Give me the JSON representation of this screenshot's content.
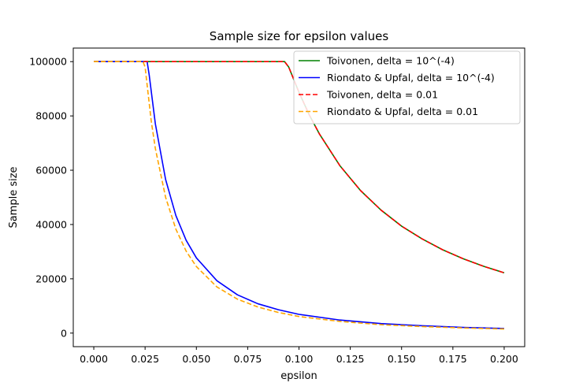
{
  "chart_data": {
    "type": "line",
    "title": "Sample size for epsilon values",
    "xlabel": "epsilon",
    "ylabel": "Sample size",
    "xlim": [
      -0.01,
      0.21
    ],
    "ylim": [
      -5000,
      105000
    ],
    "xticks": [
      0.0,
      0.025,
      0.05,
      0.075,
      0.1,
      0.125,
      0.15,
      0.175,
      0.2
    ],
    "xtick_labels": [
      "0.000",
      "0.025",
      "0.050",
      "0.075",
      "0.100",
      "0.125",
      "0.150",
      "0.175",
      "0.200"
    ],
    "yticks": [
      0,
      20000,
      40000,
      60000,
      80000,
      100000
    ],
    "ytick_labels": [
      "0",
      "20000",
      "40000",
      "60000",
      "80000",
      "100000"
    ],
    "grid": false,
    "legend_position": "top-right",
    "series": [
      {
        "name": "Toivonen, delta = 10^(-4)",
        "color": "#008000",
        "dash": "solid",
        "x": [
          0.0,
          0.02,
          0.04,
          0.06,
          0.08,
          0.093,
          0.095,
          0.1,
          0.105,
          0.11,
          0.12,
          0.13,
          0.14,
          0.15,
          0.16,
          0.17,
          0.18,
          0.19,
          0.2
        ],
        "y": [
          100000,
          100000,
          100000,
          100000,
          100000,
          100000,
          98000,
          88700,
          80400,
          73300,
          61600,
          52500,
          45300,
          39400,
          34700,
          30700,
          27400,
          24600,
          22200
        ]
      },
      {
        "name": "Riondato & Upfal, delta = 10^(-4)",
        "color": "#0000ff",
        "dash": "solid",
        "x": [
          0.0,
          0.01,
          0.02,
          0.025,
          0.026,
          0.027,
          0.03,
          0.035,
          0.04,
          0.045,
          0.05,
          0.06,
          0.07,
          0.08,
          0.09,
          0.1,
          0.12,
          0.14,
          0.16,
          0.18,
          0.2
        ],
        "y": [
          100000,
          100000,
          100000,
          100000,
          100000,
          95100,
          77100,
          56600,
          43300,
          34200,
          27700,
          19300,
          14100,
          10800,
          8600,
          6900,
          4800,
          3500,
          2700,
          2100,
          1700
        ]
      },
      {
        "name": "Toivonen, delta = 0.01",
        "color": "#ff0000",
        "dash": "dashed",
        "x": [
          0.0,
          0.02,
          0.04,
          0.06,
          0.08,
          0.093,
          0.095,
          0.1,
          0.105,
          0.11,
          0.12,
          0.13,
          0.14,
          0.15,
          0.16,
          0.17,
          0.18,
          0.19,
          0.2
        ],
        "y": [
          100000,
          100000,
          100000,
          100000,
          100000,
          100000,
          98000,
          88700,
          80400,
          73300,
          61600,
          52500,
          45300,
          39400,
          34700,
          30700,
          27400,
          24600,
          22200
        ]
      },
      {
        "name": "Riondato & Upfal, delta = 0.01",
        "color": "#ffa500",
        "dash": "dashed",
        "x": [
          0.0,
          0.01,
          0.02,
          0.024,
          0.025,
          0.028,
          0.03,
          0.035,
          0.04,
          0.045,
          0.05,
          0.06,
          0.07,
          0.08,
          0.09,
          0.1,
          0.12,
          0.14,
          0.16,
          0.18,
          0.2
        ],
        "y": [
          100000,
          100000,
          100000,
          100000,
          98000,
          78100,
          68000,
          50000,
          38300,
          30200,
          24500,
          17000,
          12500,
          9600,
          7600,
          6100,
          4300,
          3100,
          2400,
          1900,
          1500
        ]
      }
    ]
  }
}
